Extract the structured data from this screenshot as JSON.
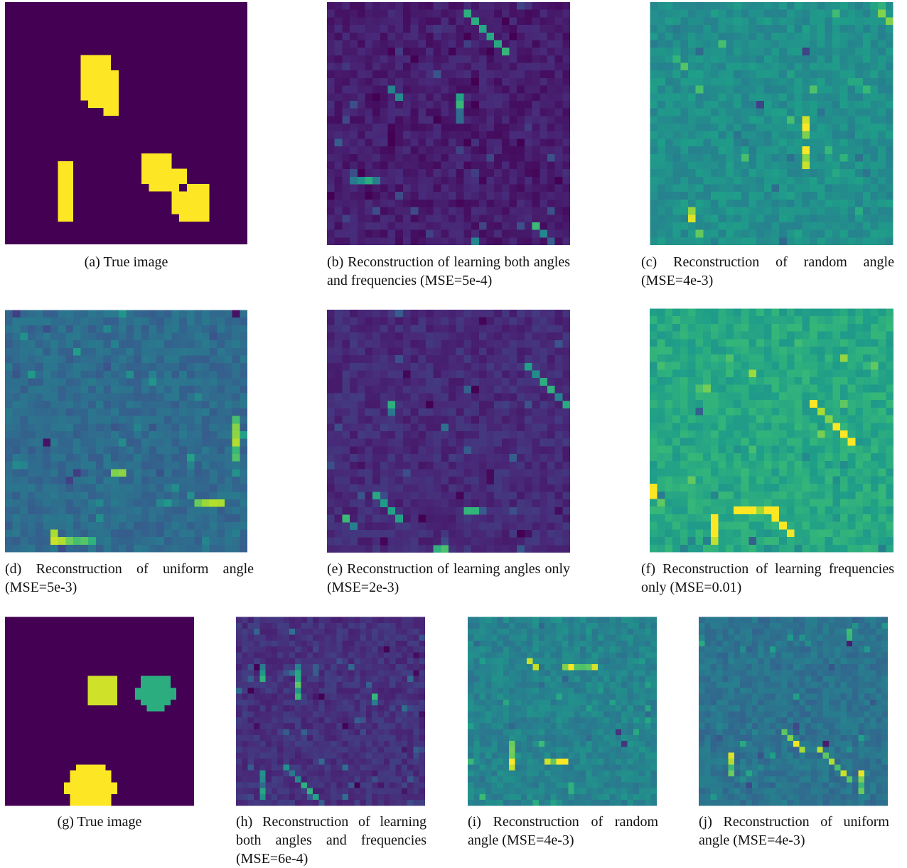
{
  "colors": {
    "viridis_dark": "#440154",
    "viridis_yellow": "#fde725",
    "viridis_green": "#35b779",
    "viridis_teal": "#21918c"
  },
  "figure": {
    "panels": [
      {
        "id": "a",
        "caption": "(a) True image",
        "kind": "true1"
      },
      {
        "id": "b",
        "caption": "(b) Reconstruction of learning both angles and frequencies (MSE=5e-4)",
        "kind": "recon",
        "base": 0.08,
        "noise": 0.05,
        "seed": 11
      },
      {
        "id": "c",
        "caption": "(c) Reconstruction of random angle (MSE=4e-3)",
        "kind": "recon",
        "base": 0.5,
        "noise": 0.06,
        "seed": 23
      },
      {
        "id": "d",
        "caption": "(d) Reconstruction of uniform angle (MSE=5e-3)",
        "kind": "recon",
        "base": 0.35,
        "noise": 0.06,
        "seed": 37
      },
      {
        "id": "e",
        "caption": "(e) Reconstruction of learning angles only (MSE=2e-3)",
        "kind": "recon",
        "base": 0.12,
        "noise": 0.05,
        "seed": 41
      },
      {
        "id": "f",
        "caption": "(f) Reconstruction of learning frequencies only (MSE=0.01)",
        "kind": "recon",
        "base": 0.6,
        "noise": 0.07,
        "seed": 53
      },
      {
        "id": "g",
        "caption": "(g) True image",
        "kind": "true2"
      },
      {
        "id": "h",
        "caption": "(h) Reconstruction of learning both angles and frequencies (MSE=6e-4)",
        "kind": "recon",
        "base": 0.14,
        "noise": 0.05,
        "seed": 67
      },
      {
        "id": "i",
        "caption": "(i) Reconstruction of random angle (MSE=4e-3)",
        "kind": "recon",
        "base": 0.45,
        "noise": 0.06,
        "seed": 71
      },
      {
        "id": "j",
        "caption": "(j) Reconstruction of uniform angle (MSE=4e-3)",
        "kind": "recon",
        "base": 0.38,
        "noise": 0.06,
        "seed": 89
      }
    ]
  }
}
